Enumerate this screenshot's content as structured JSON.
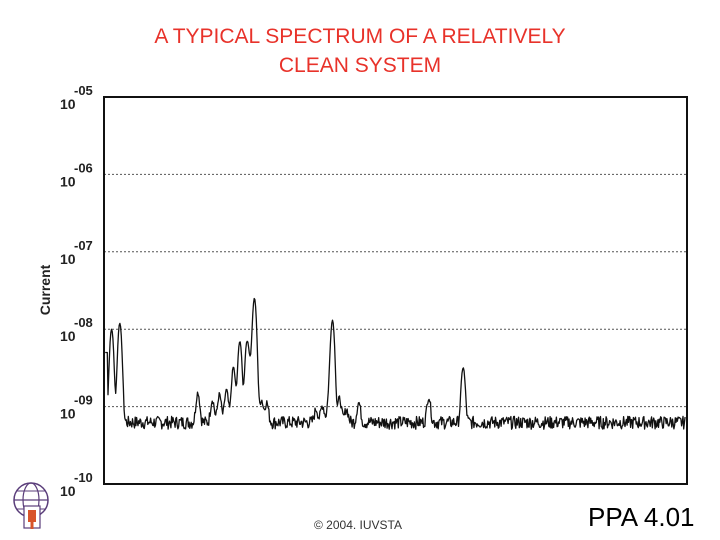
{
  "slide": {
    "title_line1": "A TYPICAL SPECTRUM OF A RELATIVELY",
    "title_line2": "CLEAN SYSTEM",
    "copyright": "© 2004. IUVSTA",
    "code": "PPA 4.01"
  },
  "chart_data": {
    "type": "line",
    "title": "A TYPICAL SPECTRUM OF A RELATIVELY CLEAN SYSTEM",
    "xlabel": "",
    "ylabel": "Current",
    "y_scale": "log",
    "ylim": [
      1e-10,
      1e-05
    ],
    "xlim": [
      0,
      100
    ],
    "grid": "horizontal dashed at each decade",
    "yticks": [
      {
        "base": "10",
        "exp": "-05",
        "value": 1e-05
      },
      {
        "base": "10",
        "exp": "-06",
        "value": 1e-06
      },
      {
        "base": "10",
        "exp": "-07",
        "value": 1e-07
      },
      {
        "base": "10",
        "exp": "-08",
        "value": 1e-08
      },
      {
        "base": "10",
        "exp": "-09",
        "value": 1e-09
      },
      {
        "base": "10",
        "exp": "-10",
        "value": 1e-10
      }
    ],
    "baseline": 6e-10,
    "series": [
      {
        "peaks": [
          {
            "x": 1.3,
            "y": 1e-08
          },
          {
            "x": 2.7,
            "y": 1.2e-08
          },
          {
            "x": 16.1,
            "y": 1.5e-09
          },
          {
            "x": 18.6,
            "y": 1.2e-09
          },
          {
            "x": 19.8,
            "y": 1.4e-09
          },
          {
            "x": 21.0,
            "y": 1.6e-09
          },
          {
            "x": 22.2,
            "y": 3.2e-09
          },
          {
            "x": 23.3,
            "y": 7e-09
          },
          {
            "x": 24.5,
            "y": 6.5e-09
          },
          {
            "x": 25.0,
            "y": 3e-09
          },
          {
            "x": 25.8,
            "y": 2.5e-08
          },
          {
            "x": 27.0,
            "y": 1.2e-09
          },
          {
            "x": 27.9,
            "y": 1.1e-09
          },
          {
            "x": 36.4,
            "y": 9e-10
          },
          {
            "x": 37.5,
            "y": 1e-09
          },
          {
            "x": 38.6,
            "y": 1.2e-09
          },
          {
            "x": 39.2,
            "y": 1.3e-08
          },
          {
            "x": 40.4,
            "y": 1.25e-09
          },
          {
            "x": 41.6,
            "y": 9e-10
          },
          {
            "x": 43.7,
            "y": 1.1e-09
          },
          {
            "x": 55.7,
            "y": 1.3e-09
          },
          {
            "x": 61.6,
            "y": 3.2e-09
          }
        ]
      }
    ]
  }
}
